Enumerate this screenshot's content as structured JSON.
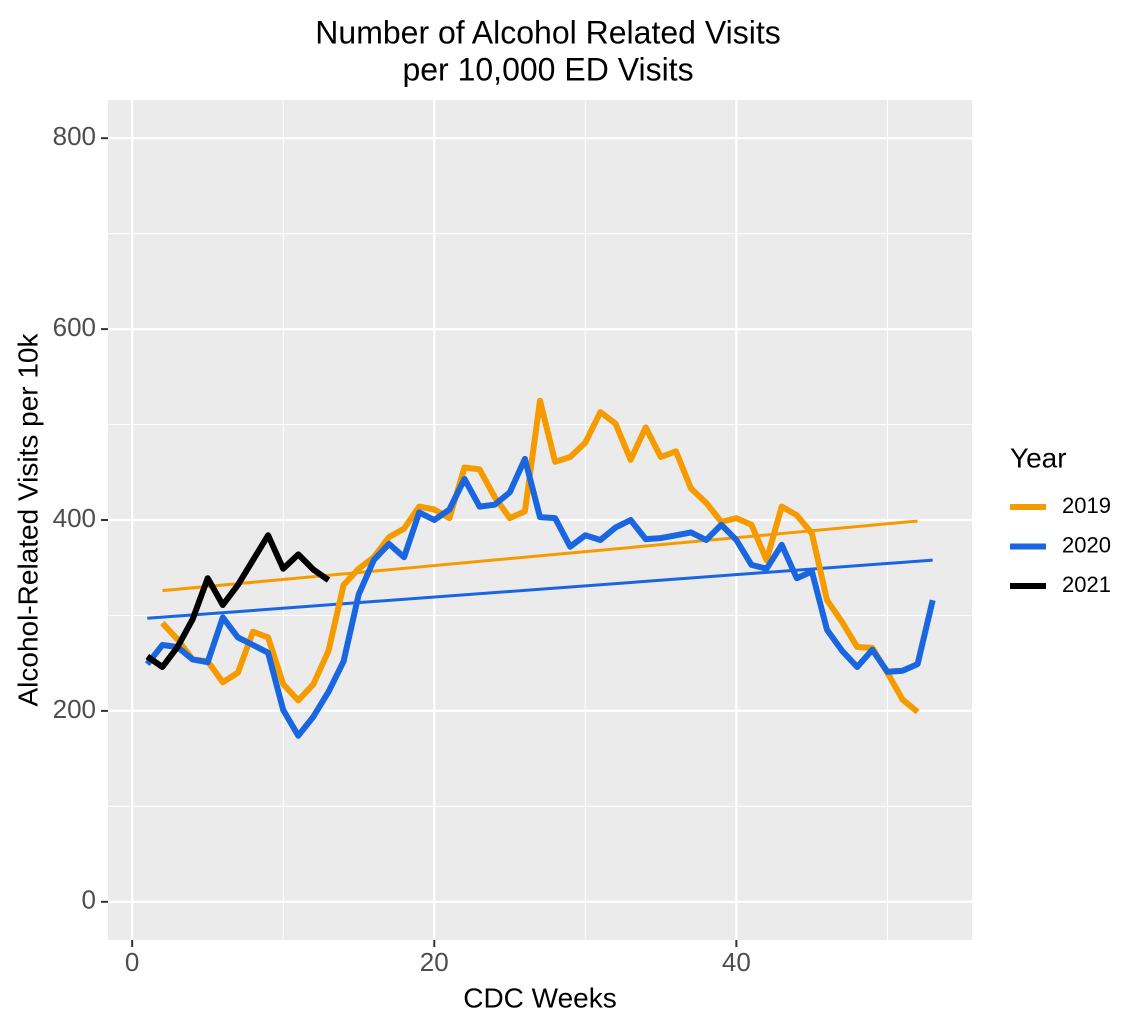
{
  "chart_data": {
    "type": "line",
    "title": [
      "Number of Alcohol Related Visits",
      "per 10,000 ED Visits"
    ],
    "x_label": "CDC Weeks",
    "y_label": "Alcohol-Related Visits per 10k",
    "legend_title": "Year",
    "legend_position": "right",
    "grid": true,
    "xlim": [
      -1.6,
      55.6
    ],
    "ylim": [
      -40,
      840
    ],
    "xticks": [
      0,
      20,
      40
    ],
    "yticks": [
      0,
      200,
      400,
      600,
      800
    ],
    "x_minor_grid": [
      10,
      30,
      50
    ],
    "y_minor_grid": [
      100,
      300,
      500,
      700
    ],
    "series": [
      {
        "name": "2019",
        "color": "#f59b00",
        "x": [
          2,
          3,
          4,
          5,
          6,
          7,
          8,
          9,
          10,
          11,
          12,
          13,
          14,
          15,
          16,
          17,
          18,
          19,
          20,
          21,
          22,
          23,
          24,
          25,
          26,
          27,
          28,
          29,
          30,
          31,
          32,
          33,
          34,
          35,
          36,
          37,
          38,
          39,
          40,
          41,
          42,
          43,
          44,
          45,
          46,
          47,
          48,
          49,
          50,
          51,
          52
        ],
        "values": [
          292,
          275,
          254,
          252,
          230,
          240,
          283,
          277,
          228,
          211,
          228,
          263,
          332,
          349,
          361,
          382,
          391,
          414,
          411,
          402,
          455,
          453,
          424,
          402,
          409,
          525,
          461,
          466,
          481,
          513,
          501,
          463,
          497,
          466,
          472,
          433,
          418,
          398,
          402,
          395,
          358,
          414,
          405,
          386,
          316,
          293,
          267,
          266,
          240,
          212,
          199
        ]
      },
      {
        "name": "2020",
        "color": "#1a66e0",
        "x": [
          1,
          2,
          3,
          4,
          5,
          6,
          7,
          8,
          9,
          10,
          11,
          12,
          13,
          14,
          15,
          16,
          17,
          18,
          19,
          20,
          21,
          22,
          23,
          24,
          25,
          26,
          27,
          28,
          29,
          30,
          31,
          32,
          33,
          34,
          35,
          36,
          37,
          38,
          39,
          40,
          41,
          42,
          43,
          44,
          45,
          46,
          47,
          48,
          49,
          50,
          51,
          52,
          53
        ],
        "values": [
          249,
          269,
          267,
          254,
          251,
          298,
          277,
          269,
          261,
          201,
          174,
          194,
          220,
          252,
          322,
          358,
          375,
          361,
          408,
          400,
          411,
          443,
          414,
          416,
          429,
          464,
          403,
          402,
          372,
          384,
          379,
          392,
          400,
          380,
          381,
          384,
          387,
          379,
          395,
          379,
          353,
          349,
          374,
          339,
          346,
          285,
          263,
          246,
          264,
          241,
          242,
          249,
          316
        ]
      },
      {
        "name": "2021",
        "color": "#000000",
        "x": [
          1,
          2,
          3,
          4,
          5,
          6,
          7,
          8,
          9,
          10,
          11,
          12,
          13
        ],
        "values": [
          257,
          246,
          267,
          296,
          339,
          311,
          332,
          358,
          384,
          349,
          364,
          348,
          337
        ]
      }
    ],
    "trend_lines": [
      {
        "color": "#f59b00",
        "x": [
          2,
          52
        ],
        "values": [
          326,
          399
        ]
      },
      {
        "color": "#1a66e0",
        "x": [
          1,
          53
        ],
        "values": [
          297,
          358
        ]
      }
    ]
  }
}
